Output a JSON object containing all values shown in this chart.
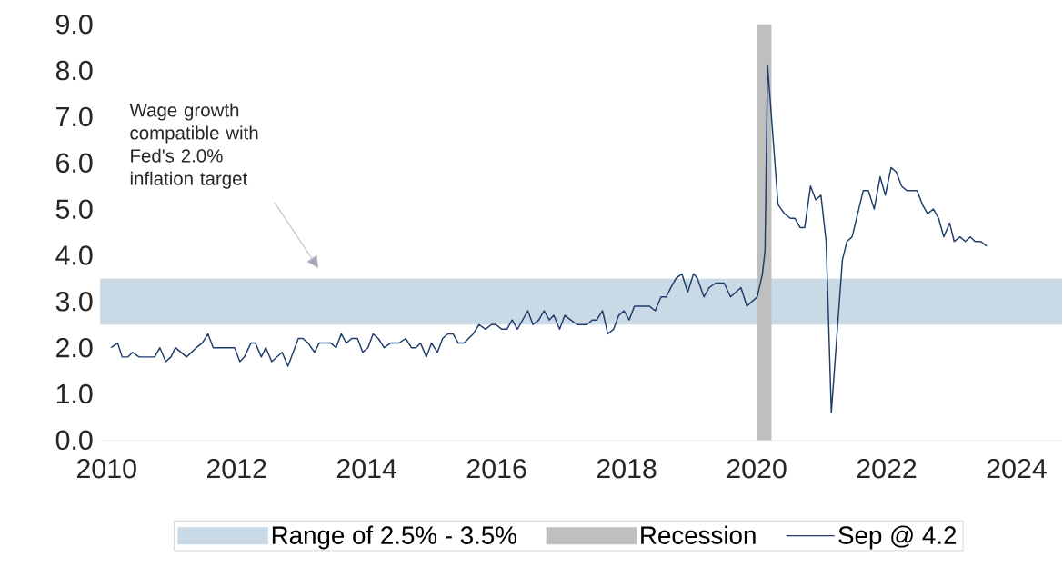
{
  "chart_data": {
    "type": "line",
    "title": null,
    "x": [
      2010.07,
      2010.17,
      2010.24,
      2010.33,
      2010.4,
      2010.5,
      2010.74,
      2010.82,
      2010.91,
      2010.99,
      2011.06,
      2011.23,
      2011.38,
      2011.47,
      2011.56,
      2011.64,
      2011.97,
      2012.05,
      2012.12,
      2012.22,
      2012.29,
      2012.38,
      2012.45,
      2012.54,
      2012.7,
      2012.79,
      2012.95,
      2013.02,
      2013.1,
      2013.2,
      2013.27,
      2013.45,
      2013.53,
      2013.61,
      2013.69,
      2013.77,
      2013.86,
      2013.94,
      2014.02,
      2014.1,
      2014.18,
      2014.27,
      2014.37,
      2014.5,
      2014.6,
      2014.69,
      2014.76,
      2014.83,
      2014.92,
      2015.0,
      2015.09,
      2015.17,
      2015.25,
      2015.33,
      2015.41,
      2015.5,
      2015.64,
      2015.73,
      2015.83,
      2015.92,
      2015.99,
      2016.08,
      2016.16,
      2016.24,
      2016.32,
      2016.48,
      2016.56,
      2016.65,
      2016.73,
      2016.81,
      2016.88,
      2016.97,
      2017.05,
      2017.14,
      2017.24,
      2017.39,
      2017.47,
      2017.54,
      2017.63,
      2017.71,
      2017.8,
      2017.88,
      2017.96,
      2018.04,
      2018.12,
      2018.35,
      2018.44,
      2018.53,
      2018.61,
      2018.68,
      2018.76,
      2018.85,
      2018.94,
      2019.03,
      2019.09,
      2019.19,
      2019.27,
      2019.37,
      2019.5,
      2019.6,
      2019.76,
      2019.85,
      2020.01,
      2020.09,
      2020.13,
      2020.17,
      2020.33,
      2020.43,
      2020.52,
      2020.59,
      2020.67,
      2020.74,
      2020.83,
      2020.91,
      2020.99,
      2021.07,
      2021.15,
      2021.32,
      2021.39,
      2021.47,
      2021.64,
      2021.72,
      2021.81,
      2021.9,
      2021.98,
      2022.07,
      2022.15,
      2022.23,
      2022.31,
      2022.47,
      2022.55,
      2022.63,
      2022.72,
      2022.8,
      2022.88,
      2022.97,
      2023.04,
      2023.13,
      2023.21,
      2023.29,
      2023.36,
      2023.45,
      2023.54
    ],
    "series": [
      {
        "name": "Sep @ 4.2",
        "color": "#1f3d6b",
        "values": [
          2.0,
          2.1,
          1.8,
          1.8,
          1.9,
          1.8,
          1.8,
          2.0,
          1.7,
          1.8,
          2.0,
          1.8,
          2.0,
          2.1,
          2.3,
          2.0,
          2.0,
          1.7,
          1.8,
          2.1,
          2.1,
          1.8,
          2.0,
          1.7,
          1.9,
          1.6,
          2.2,
          2.2,
          2.1,
          1.9,
          2.1,
          2.1,
          2.0,
          2.3,
          2.1,
          2.2,
          2.2,
          1.9,
          2.0,
          2.3,
          2.2,
          2.0,
          2.1,
          2.1,
          2.2,
          2.0,
          2.0,
          2.1,
          1.8,
          2.1,
          1.9,
          2.2,
          2.3,
          2.3,
          2.1,
          2.1,
          2.3,
          2.5,
          2.4,
          2.5,
          2.5,
          2.4,
          2.4,
          2.6,
          2.4,
          2.8,
          2.5,
          2.6,
          2.8,
          2.6,
          2.7,
          2.4,
          2.7,
          2.6,
          2.5,
          2.5,
          2.6,
          2.6,
          2.8,
          2.3,
          2.4,
          2.7,
          2.8,
          2.6,
          2.9,
          2.9,
          2.8,
          3.1,
          3.1,
          3.3,
          3.5,
          3.6,
          3.2,
          3.6,
          3.5,
          3.1,
          3.3,
          3.4,
          3.4,
          3.1,
          3.3,
          2.9,
          3.1,
          3.6,
          4.1,
          8.1,
          5.1,
          4.9,
          4.8,
          4.8,
          4.6,
          4.6,
          5.5,
          5.2,
          5.3,
          4.3,
          0.6,
          3.9,
          4.3,
          4.4,
          5.4,
          5.4,
          5.0,
          5.7,
          5.3,
          5.9,
          5.8,
          5.5,
          5.4,
          5.4,
          5.1,
          4.9,
          5.0,
          4.8,
          4.4,
          4.7,
          4.3,
          4.4,
          4.3,
          4.4,
          4.3,
          4.3,
          4.2
        ]
      }
    ],
    "xlim": [
      2009.9,
      2024.7
    ],
    "xticks": [
      2010,
      2012,
      2014,
      2016,
      2018,
      2020,
      2022,
      2024
    ],
    "ylim": [
      0,
      9
    ],
    "yticks": [
      {
        "value": 0,
        "label": "0.0"
      },
      {
        "value": 1,
        "label": "1.0"
      },
      {
        "value": 2,
        "label": "2.0"
      },
      {
        "value": 3,
        "label": "3.0"
      },
      {
        "value": 4,
        "label": "4.0"
      },
      {
        "value": 5,
        "label": "5.0"
      },
      {
        "value": 6,
        "label": "6.0"
      },
      {
        "value": 7,
        "label": "7.0"
      },
      {
        "value": 8,
        "label": "8.0"
      },
      {
        "value": 9,
        "label": "9.0"
      }
    ],
    "bands": [
      {
        "axis": "y",
        "from": 2.5,
        "to": 3.5,
        "label": "Range of 2.5% - 3.5%",
        "color": "#c9d9e6"
      },
      {
        "axis": "x",
        "from": 2020.0,
        "to": 2020.23,
        "label": "Recession",
        "color": "#bfbfbf"
      }
    ],
    "annotations": [
      "Wage growth compatible with Fed's 2.0% inflation target"
    ],
    "legend": "bottom",
    "grid": false,
    "line_style": "solid",
    "marker": "none"
  }
}
